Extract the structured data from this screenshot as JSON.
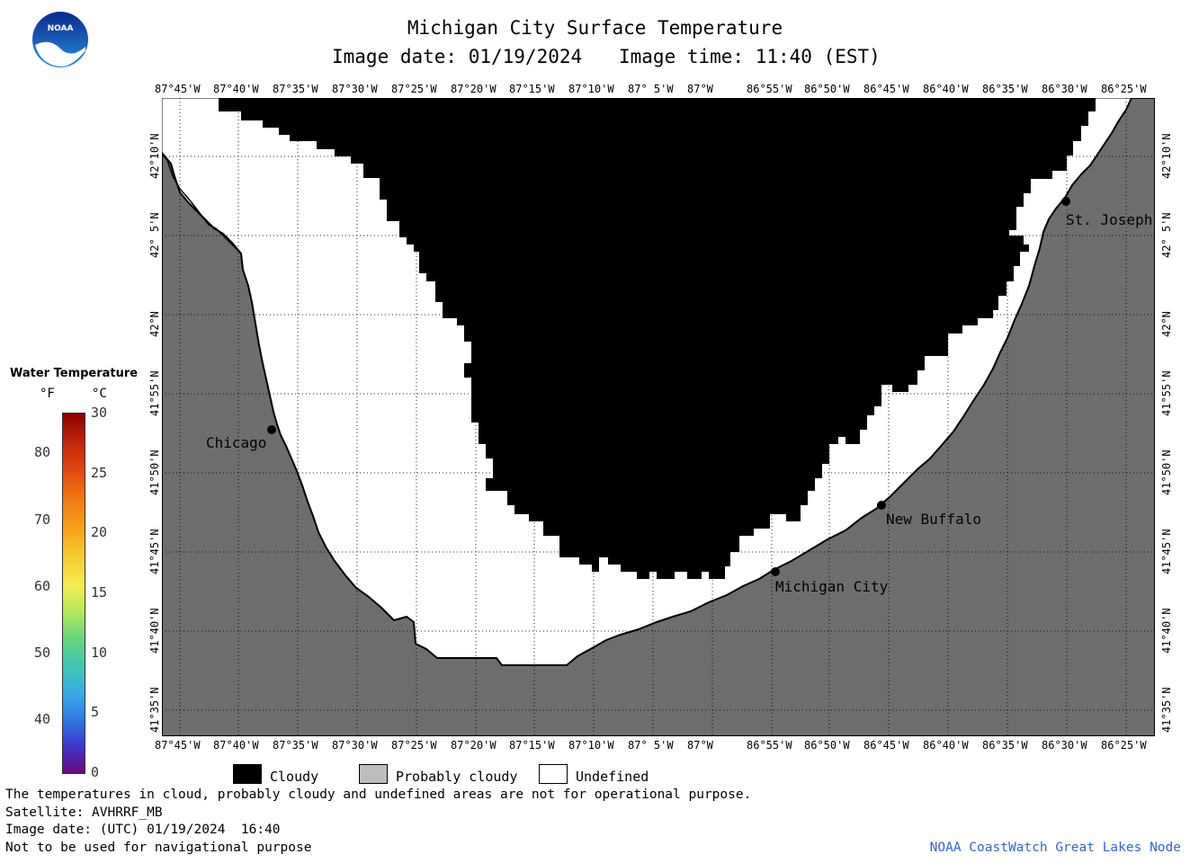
{
  "header": {
    "title": "Michigan City Surface Temperature",
    "date_line": "Image date: 01/19/2024",
    "time_line": "Image time: 11:40 (EST)"
  },
  "logo": {
    "text": "NOAA",
    "color": "#1a5fb4"
  },
  "map": {
    "lon_labels": [
      "87°45'W",
      "87°40'W",
      "87°35'W",
      "87°30'W",
      "87°25'W",
      "87°20'W",
      "87°15'W",
      "87°10'W",
      "87° 5'W",
      "87°W",
      "86°55'W",
      "86°50'W",
      "86°45'W",
      "86°40'W",
      "86°35'W",
      "86°30'W",
      "86°25'W"
    ],
    "lat_labels": [
      "42°10'N",
      "42° 5'N",
      "42°N",
      "41°55'N",
      "41°50'N",
      "41°45'N",
      "41°40'N",
      "41°35'N"
    ],
    "places": [
      {
        "name": "Chicago"
      },
      {
        "name": "St. Joseph"
      },
      {
        "name": "New Buffalo"
      },
      {
        "name": "Michigan City"
      }
    ],
    "colors": {
      "land": "#6e6e6e",
      "cloud": "#000000",
      "undefined": "#ffffff"
    }
  },
  "colorbar": {
    "title": "Water Temperature",
    "unit_f": "°F",
    "unit_c": "°C",
    "f_ticks": [
      "80",
      "70",
      "60",
      "50",
      "40"
    ],
    "c_ticks": [
      "30",
      "25",
      "20",
      "15",
      "10",
      "5",
      "0"
    ]
  },
  "legend": {
    "cloudy": "Cloudy",
    "probably_cloudy": "Probably cloudy",
    "undefined": "Undefined"
  },
  "footer": {
    "note": "The temperatures in cloud, probably cloudy and undefined areas are not for operational purpose.",
    "satellite": "Satellite: AVHRRF_MB",
    "utc": "Image date: (UTC) 01/19/2024  16:40",
    "nav": "Not to be used for navigational purpose",
    "credit": "NOAA CoastWatch Great Lakes Node"
  }
}
